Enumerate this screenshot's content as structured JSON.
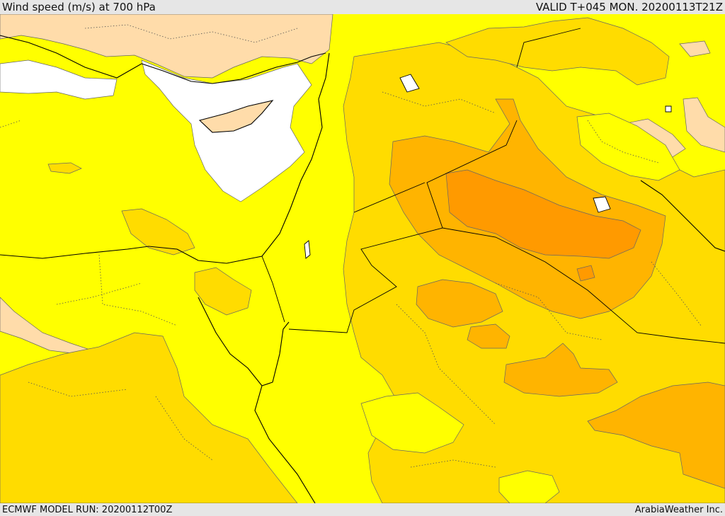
{
  "header": {
    "title": "Wind speed (m/s) at 700 hPa",
    "valid": "VALID T+045 MON. 20200113T21Z"
  },
  "footer": {
    "model_run": "ECMWF MODEL RUN: 20200112T00Z",
    "credit": "ArabiaWeather Inc."
  },
  "colors": {
    "calm": "#ffffff",
    "light": "#ffdcaa",
    "moderate": "#ffff00",
    "fresh": "#ffdc00",
    "strong": "#ffb400",
    "very_strong": "#ff9a00"
  }
}
